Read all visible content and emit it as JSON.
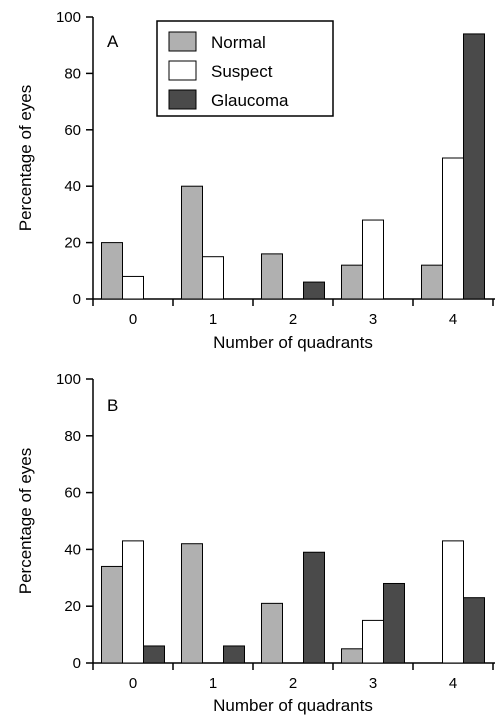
{
  "colors": {
    "Normal": "#b0b0b0",
    "Suspect": "#ffffff",
    "Glaucoma": "#4a4a4a",
    "stroke": "#000000"
  },
  "chart_data": [
    {
      "type": "bar",
      "panel_label": "A",
      "categories": [
        "0",
        "1",
        "2",
        "3",
        "4"
      ],
      "series": [
        {
          "name": "Normal",
          "values": [
            20,
            40,
            16,
            12,
            12
          ]
        },
        {
          "name": "Suspect",
          "values": [
            8,
            15,
            0,
            28,
            50
          ]
        },
        {
          "name": "Glaucoma",
          "values": [
            0,
            0,
            6,
            0,
            94
          ]
        }
      ],
      "xlabel": "Number of quadrants",
      "ylabel": "Percentage of eyes",
      "ylim": [
        0,
        100
      ],
      "yticks": [
        "0",
        "20",
        "40",
        "60",
        "80",
        "100"
      ],
      "legend": "top-left"
    },
    {
      "type": "bar",
      "panel_label": "B",
      "categories": [
        "0",
        "1",
        "2",
        "3",
        "4"
      ],
      "series": [
        {
          "name": "Normal",
          "values": [
            34,
            42,
            21,
            5,
            0
          ]
        },
        {
          "name": "Suspect",
          "values": [
            43,
            0,
            0,
            15,
            43
          ]
        },
        {
          "name": "Glaucoma",
          "values": [
            6,
            6,
            39,
            28,
            23
          ]
        }
      ],
      "xlabel": "Number of quadrants",
      "ylabel": "Percentage of eyes",
      "ylim": [
        0,
        100
      ],
      "yticks": [
        "0",
        "20",
        "40",
        "60",
        "80",
        "100"
      ]
    }
  ]
}
